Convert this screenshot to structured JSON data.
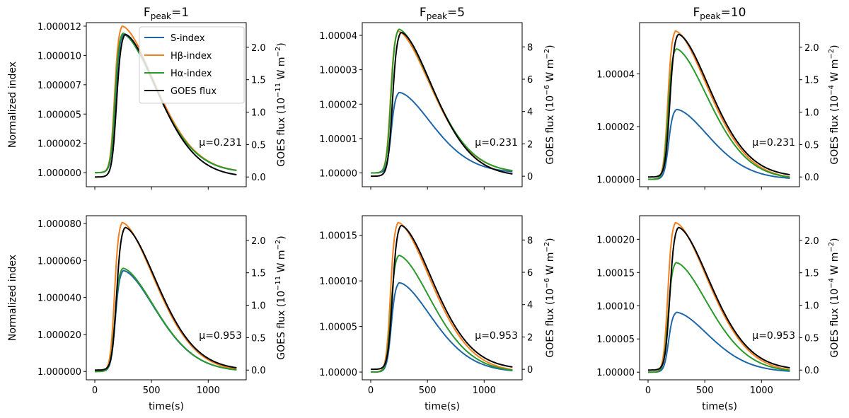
{
  "figure": {
    "left_ylabel": "Normalized index",
    "xlabel": "time(s)"
  },
  "legend": {
    "location": "top-right (first panel)",
    "entries": [
      {
        "label": "S-index",
        "color": "#1f66a8"
      },
      {
        "label": "Hβ-index",
        "color": "#f47f1e"
      },
      {
        "label": "Hα-index",
        "color": "#2a9a2a"
      },
      {
        "label": "GOES flux",
        "color": "#000000"
      }
    ]
  },
  "chart_data": [
    {
      "type": "line",
      "panel": "row1-col1",
      "title_main": "F",
      "title_sub": "peak",
      "title_value": "=1",
      "annotation": "μ=0.231",
      "ylabel": "Normalized index",
      "show_ylabel": true,
      "show_xticklabels": false,
      "show_xlabel": false,
      "y2label": "GOES flux (10$^{-11}$ W m$^{-2}$)",
      "y2label_pre": "GOES flux (10",
      "y2label_exp": "−11",
      "y2label_post": " W m",
      "y2label_exp2": "−2",
      "y2label_end": ")",
      "xlim": [
        -75,
        1335
      ],
      "ylim": [
        0.9999988,
        1.0000128
      ],
      "y2lim": [
        -0.15,
        2.38
      ],
      "yticks": [
        1.0,
        1.0000025,
        1.000005,
        1.0000075,
        1.00001,
        1.0000125
      ],
      "yticklabels": [
        "1.000000",
        "1.000002",
        "1.000005",
        "1.000007",
        "1.000010",
        "1.000012"
      ],
      "y2ticks": [
        0.0,
        0.5,
        1.0,
        1.5,
        2.0
      ],
      "y2ticklabels": [
        "0.0",
        "0.5",
        "1.0",
        "1.5",
        "2.0"
      ],
      "xticks": [
        0,
        500,
        1000
      ],
      "xticklabels": [
        "0",
        "500",
        "1000"
      ],
      "series": [
        {
          "name": "S-index",
          "color": "#1f66a8",
          "peak": 1.0000118,
          "tpeak": 250
        },
        {
          "name": "Hβ-index",
          "color": "#f47f1e",
          "peak": 1.0000125,
          "tpeak": 240
        },
        {
          "name": "Hα-index",
          "color": "#2a9a2a",
          "peak": 1.0000119,
          "tpeak": 245
        },
        {
          "name": "GOES flux",
          "color": "#000000",
          "peak": 2.2,
          "tpeak": 265,
          "axis": "right"
        }
      ]
    },
    {
      "type": "line",
      "panel": "row1-col2",
      "title_main": "F",
      "title_sub": "peak",
      "title_value": "=5",
      "annotation": "μ=0.231",
      "ylabel": "",
      "show_ylabel": false,
      "show_xticklabels": false,
      "show_xlabel": false,
      "y2label": "GOES flux (10$^{-6}$ W m$^{-2}$)",
      "y2label_pre": "GOES flux (10",
      "y2label_exp": "−6",
      "y2label_post": " W m",
      "y2label_exp2": "−2",
      "y2label_end": ")",
      "xlim": [
        -75,
        1335
      ],
      "ylim": [
        0.999996,
        1.0000437
      ],
      "y2lim": [
        -0.65,
        9.5
      ],
      "yticks": [
        1.0,
        1.00001,
        1.00002,
        1.00003,
        1.00004
      ],
      "yticklabels": [
        "1.00000",
        "1.00001",
        "1.00002",
        "1.00003",
        "1.00004"
      ],
      "y2ticks": [
        0,
        2,
        4,
        6,
        8
      ],
      "y2ticklabels": [
        "0",
        "2",
        "4",
        "6",
        "8"
      ],
      "xticks": [
        0,
        500,
        1000
      ],
      "xticklabels": [
        "0",
        "500",
        "1000"
      ],
      "series": [
        {
          "name": "S-index",
          "color": "#1f66a8",
          "peak": 1.0000234,
          "tpeak": 250
        },
        {
          "name": "Hβ-index",
          "color": "#f47f1e",
          "peak": 1.0000412,
          "tpeak": 240
        },
        {
          "name": "Hα-index",
          "color": "#2a9a2a",
          "peak": 1.0000418,
          "tpeak": 245
        },
        {
          "name": "GOES flux",
          "color": "#000000",
          "peak": 8.9,
          "tpeak": 265,
          "axis": "right"
        }
      ]
    },
    {
      "type": "line",
      "panel": "row1-col3",
      "title_main": "F",
      "title_sub": "peak",
      "title_value": "=10",
      "annotation": "μ=0.231",
      "ylabel": "",
      "show_ylabel": false,
      "show_xticklabels": false,
      "show_xlabel": false,
      "y2label": "GOES flux (10$^{-4}$ W m$^{-2}$)",
      "y2label_pre": "GOES flux (10",
      "y2label_exp": "−4",
      "y2label_post": " W m",
      "y2label_exp2": "−2",
      "y2label_end": ")",
      "xlim": [
        -75,
        1335
      ],
      "ylim": [
        0.9999972,
        1.0000594
      ],
      "y2lim": [
        -0.15,
        2.38
      ],
      "yticks": [
        1.0,
        1.00002,
        1.00004
      ],
      "yticklabels": [
        "1.00000",
        "1.00002",
        "1.00004"
      ],
      "y2ticks": [
        0.0,
        0.5,
        1.0,
        1.5,
        2.0
      ],
      "y2ticklabels": [
        "0.0",
        "0.5",
        "1.0",
        "1.5",
        "2.0"
      ],
      "xticks": [
        0,
        500,
        1000
      ],
      "xticklabels": [
        "0",
        "500",
        "1000"
      ],
      "series": [
        {
          "name": "S-index",
          "color": "#1f66a8",
          "peak": 1.0000265,
          "tpeak": 250
        },
        {
          "name": "Hβ-index",
          "color": "#f47f1e",
          "peak": 1.0000562,
          "tpeak": 240
        },
        {
          "name": "Hα-index",
          "color": "#2a9a2a",
          "peak": 1.0000495,
          "tpeak": 245
        },
        {
          "name": "GOES flux",
          "color": "#000000",
          "peak": 2.2,
          "tpeak": 265,
          "axis": "right"
        }
      ]
    },
    {
      "type": "line",
      "panel": "row2-col1",
      "title_main": "",
      "title_sub": "",
      "title_value": "",
      "annotation": "μ=0.953",
      "ylabel": "Normalized index",
      "show_ylabel": true,
      "show_xticklabels": true,
      "show_xlabel": true,
      "y2label": "GOES flux (10$^{-11}$ W m$^{-2}$)",
      "y2label_pre": "GOES flux (10",
      "y2label_exp": "−11",
      "y2label_post": " W m",
      "y2label_exp2": "−2",
      "y2label_end": ")",
      "xlim": [
        -75,
        1335
      ],
      "ylim": [
        0.9999955,
        1.0000842
      ],
      "y2lim": [
        -0.15,
        2.38
      ],
      "yticks": [
        1.0,
        1.00002,
        1.00004,
        1.00006,
        1.00008
      ],
      "yticklabels": [
        "1.000000",
        "1.000020",
        "1.000040",
        "1.000060",
        "1.000080"
      ],
      "y2ticks": [
        0.0,
        0.5,
        1.0,
        1.5,
        2.0
      ],
      "y2ticklabels": [
        "0.0",
        "0.5",
        "1.0",
        "1.5",
        "2.0"
      ],
      "xticks": [
        0,
        500,
        1000
      ],
      "xticklabels": [
        "0",
        "500",
        "1000"
      ],
      "series": [
        {
          "name": "S-index",
          "color": "#1f66a8",
          "peak": 1.0000545,
          "tpeak": 250
        },
        {
          "name": "Hβ-index",
          "color": "#f47f1e",
          "peak": 1.0000805,
          "tpeak": 240
        },
        {
          "name": "Hα-index",
          "color": "#2a9a2a",
          "peak": 1.0000558,
          "tpeak": 245
        },
        {
          "name": "GOES flux",
          "color": "#000000",
          "peak": 2.2,
          "tpeak": 265,
          "axis": "right"
        }
      ]
    },
    {
      "type": "line",
      "panel": "row2-col2",
      "title_main": "",
      "title_sub": "",
      "title_value": "",
      "annotation": "μ=0.953",
      "ylabel": "",
      "show_ylabel": false,
      "show_xticklabels": true,
      "show_xlabel": true,
      "y2label": "GOES flux (10$^{-6}$ W m$^{-2}$)",
      "y2label_pre": "GOES flux (10",
      "y2label_exp": "−6",
      "y2label_post": " W m",
      "y2label_exp2": "−2",
      "y2label_end": ")",
      "xlim": [
        -75,
        1335
      ],
      "ylim": [
        0.9999915,
        1.0001715
      ],
      "y2lim": [
        -0.65,
        9.5
      ],
      "yticks": [
        1.0,
        1.00005,
        1.0001,
        1.00015
      ],
      "yticklabels": [
        "1.00000",
        "1.00005",
        "1.00010",
        "1.00015"
      ],
      "y2ticks": [
        0,
        2,
        4,
        6,
        8
      ],
      "y2ticklabels": [
        "0",
        "2",
        "4",
        "6",
        "8"
      ],
      "xticks": [
        0,
        500,
        1000
      ],
      "xticklabels": [
        "0",
        "500",
        "1000"
      ],
      "series": [
        {
          "name": "S-index",
          "color": "#1f66a8",
          "peak": 1.000098,
          "tpeak": 250
        },
        {
          "name": "Hβ-index",
          "color": "#f47f1e",
          "peak": 1.000164,
          "tpeak": 240
        },
        {
          "name": "Hα-index",
          "color": "#2a9a2a",
          "peak": 1.000128,
          "tpeak": 245
        },
        {
          "name": "GOES flux",
          "color": "#000000",
          "peak": 8.9,
          "tpeak": 265,
          "axis": "right"
        }
      ]
    },
    {
      "type": "line",
      "panel": "row2-col3",
      "title_main": "",
      "title_sub": "",
      "title_value": "",
      "annotation": "μ=0.953",
      "ylabel": "",
      "show_ylabel": false,
      "show_xticklabels": true,
      "show_xlabel": true,
      "y2label": "GOES flux (10$^{-4}$ W m$^{-2}$)",
      "y2label_pre": "GOES flux (10",
      "y2label_exp": "−4",
      "y2label_post": " W m",
      "y2label_exp2": "−2",
      "y2label_end": ")",
      "xlim": [
        -75,
        1335
      ],
      "ylim": [
        0.9999885,
        1.0002355
      ],
      "y2lim": [
        -0.15,
        2.38
      ],
      "yticks": [
        1.0,
        1.00005,
        1.0001,
        1.00015,
        1.0002
      ],
      "yticklabels": [
        "1.00000",
        "1.00005",
        "1.00010",
        "1.00015",
        "1.00020"
      ],
      "y2ticks": [
        0.0,
        0.5,
        1.0,
        1.5,
        2.0
      ],
      "y2ticklabels": [
        "0.0",
        "0.5",
        "1.0",
        "1.5",
        "2.0"
      ],
      "xticks": [
        0,
        500,
        1000
      ],
      "xticklabels": [
        "0",
        "500",
        "1000"
      ],
      "series": [
        {
          "name": "S-index",
          "color": "#1f66a8",
          "peak": 1.00009,
          "tpeak": 250
        },
        {
          "name": "Hβ-index",
          "color": "#f47f1e",
          "peak": 1.000225,
          "tpeak": 240
        },
        {
          "name": "Hα-index",
          "color": "#2a9a2a",
          "peak": 1.000165,
          "tpeak": 245
        },
        {
          "name": "GOES flux",
          "color": "#000000",
          "peak": 2.2,
          "tpeak": 265,
          "axis": "right"
        }
      ]
    }
  ]
}
